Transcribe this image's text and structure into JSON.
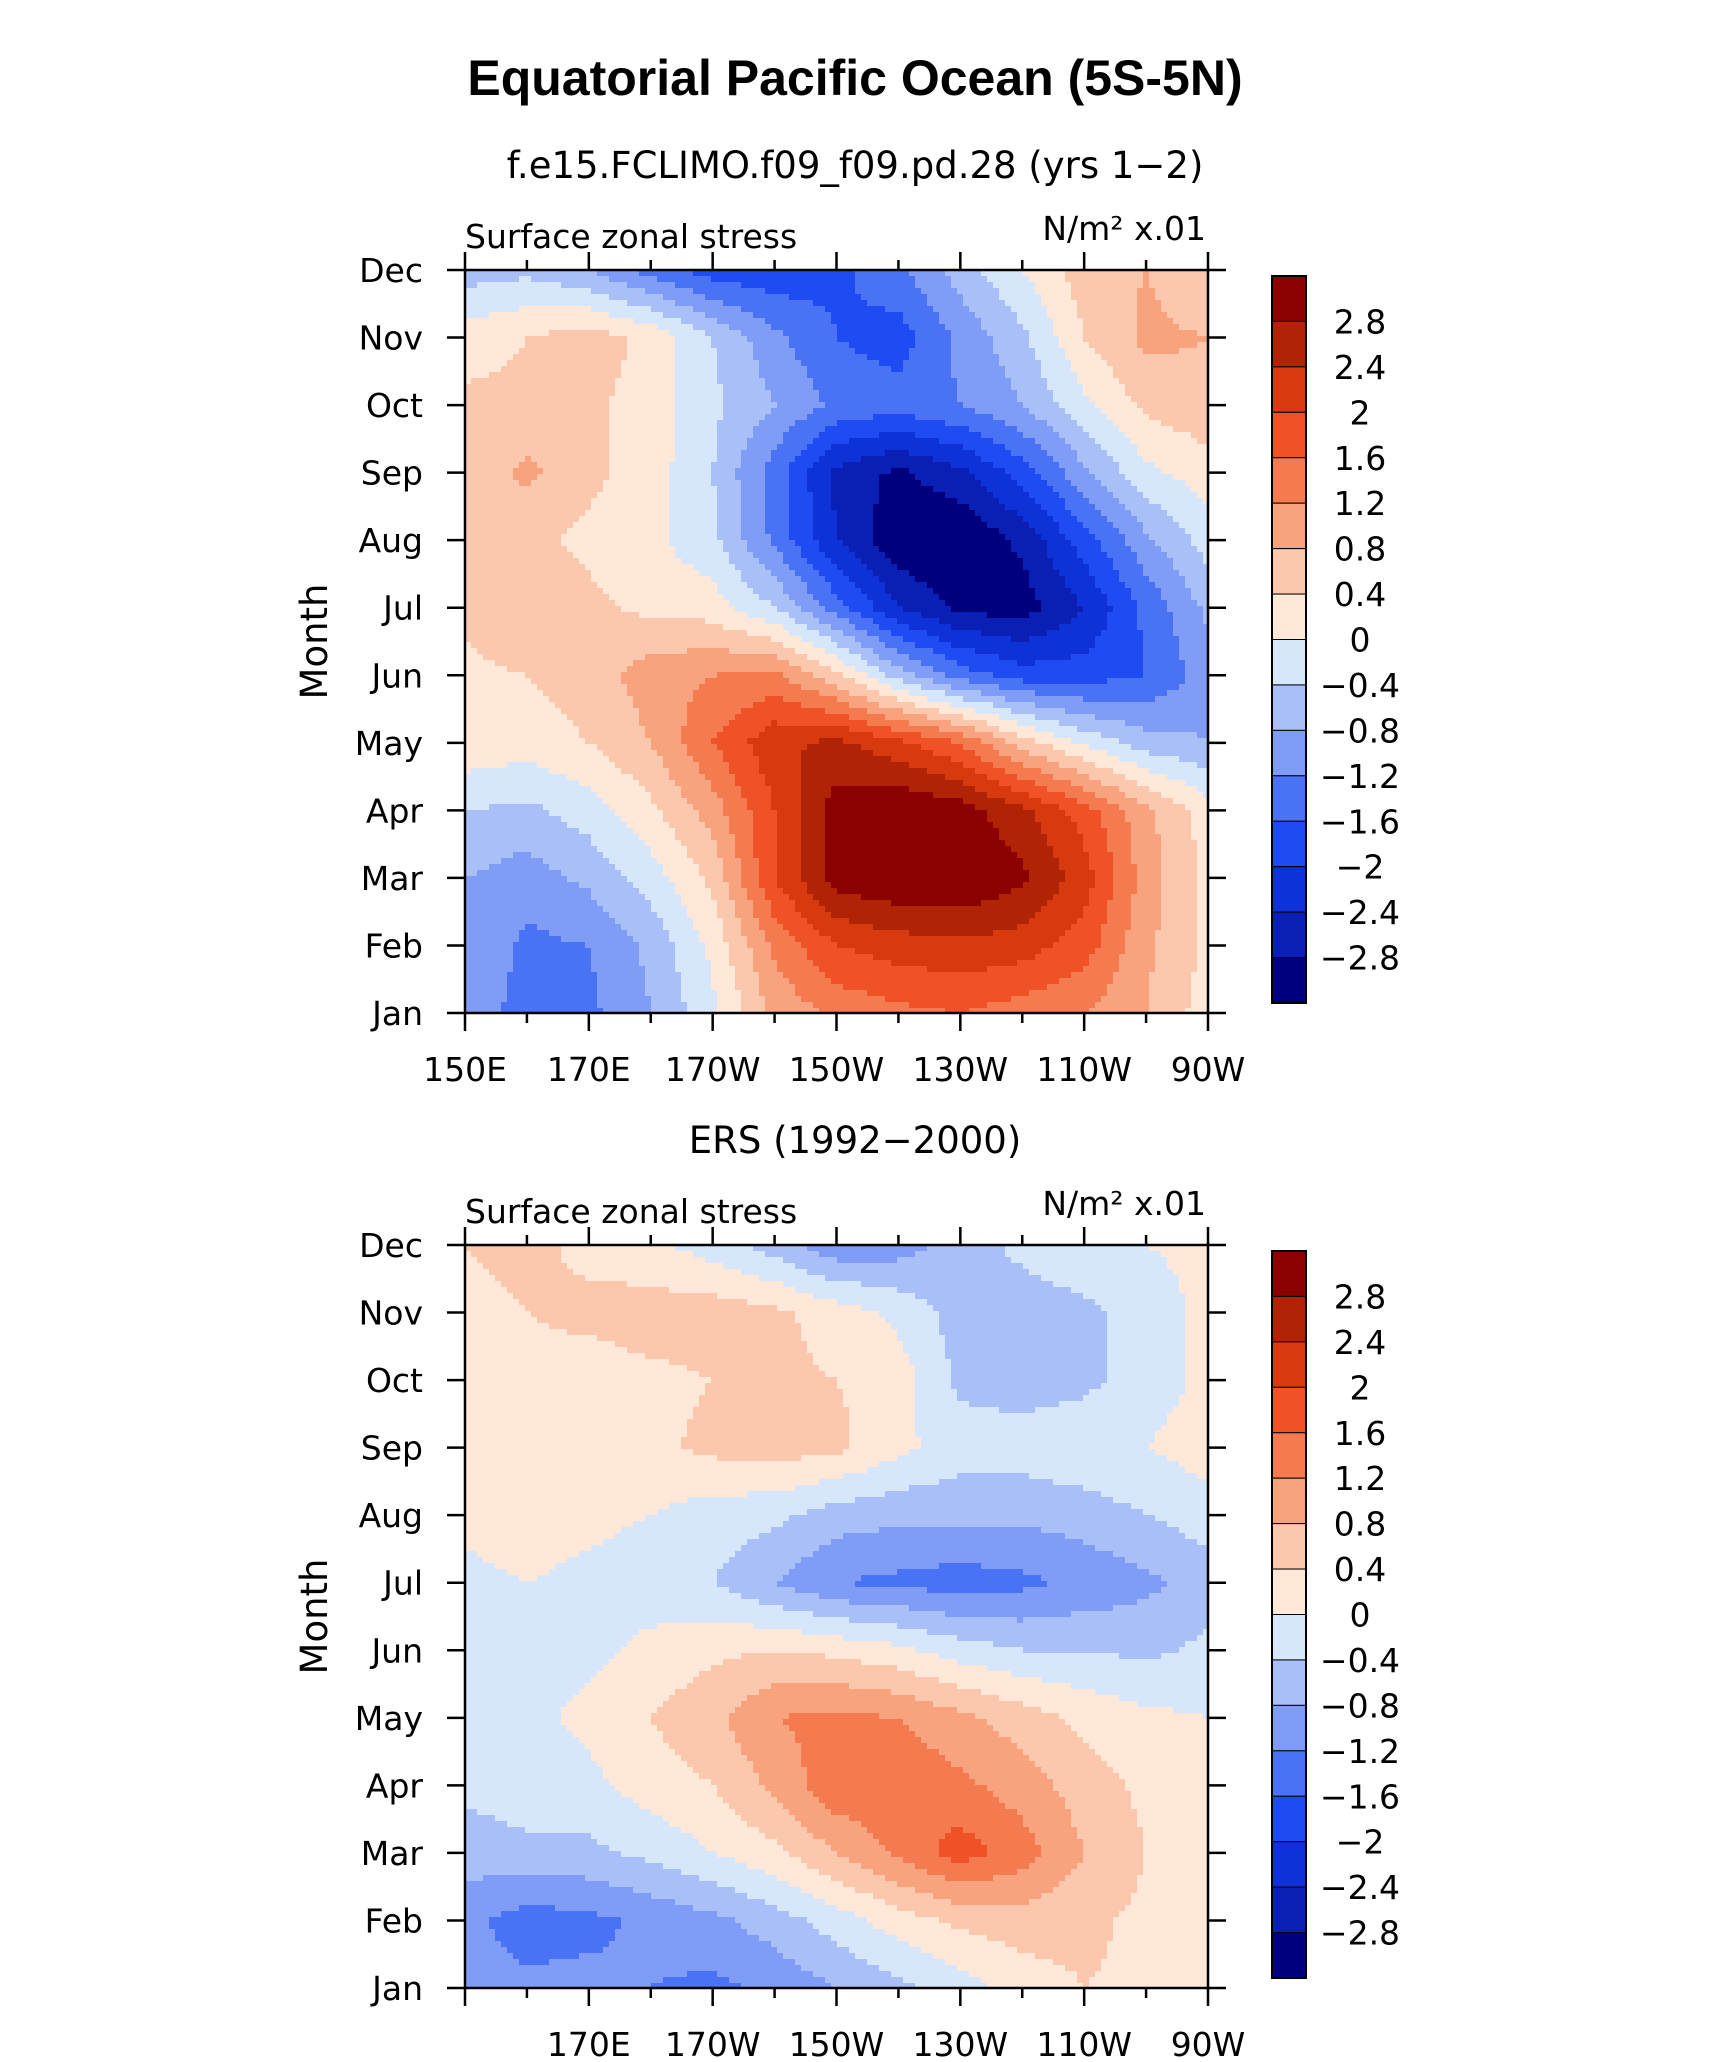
{
  "figure": {
    "title": "Equatorial Pacific Ocean (5S-5N)"
  },
  "colorbar": {
    "levels": [
      -2.8,
      -2.4,
      -2,
      -1.6,
      -1.2,
      -0.8,
      -0.4,
      0,
      0.4,
      0.8,
      1.2,
      1.6,
      2,
      2.4,
      2.8
    ],
    "labels": [
      "2.8",
      "2.4",
      "2",
      "1.6",
      "1.2",
      "0.8",
      "0.4",
      "0",
      "−0.4",
      "−0.8",
      "−1.2",
      "−1.6",
      "−2",
      "−2.4",
      "−2.8"
    ],
    "colors": [
      "#00007f",
      "#0a1fb4",
      "#0f32d8",
      "#1f4cf2",
      "#4a72f4",
      "#7f9cf6",
      "#a9bff8",
      "#d6e6fb",
      "#ffe8d8",
      "#fbc7ad",
      "#f8a27e",
      "#f47a50",
      "#ef5226",
      "#d83a0f",
      "#b02405",
      "#8b0000"
    ]
  },
  "chart_data": [
    {
      "type": "heatmap",
      "subtitle": "f.e15.FCLIMO.f09_f09.pd.28 (yrs 1−2)",
      "left_label": "Surface zonal stress",
      "units_label": "N/m² x.01",
      "ylabel": "Month",
      "x_tick_labels": [
        "150E",
        "170E",
        "170W",
        "150W",
        "130W",
        "110W",
        "90W"
      ],
      "x_ticks": [
        150,
        170,
        190,
        210,
        230,
        250,
        270
      ],
      "xlim": [
        150,
        270
      ],
      "y_tick_labels": [
        "Jan",
        "Feb",
        "Mar",
        "Apr",
        "May",
        "Jun",
        "Jul",
        "Aug",
        "Sep",
        "Oct",
        "Nov",
        "Dec"
      ],
      "ylim": [
        1,
        12
      ],
      "x": [
        150,
        160,
        170,
        180,
        190,
        200,
        210,
        220,
        230,
        240,
        250,
        260,
        270
      ],
      "values": [
        [
          -0.9,
          -1.4,
          -1.3,
          -0.8,
          -0.1,
          0.9,
          1.3,
          1.5,
          1.6,
          1.4,
          1.2,
          0.8,
          0.2
        ],
        [
          -0.8,
          -1.3,
          -1.2,
          -0.7,
          0.1,
          1.3,
          2.0,
          2.2,
          2.3,
          2.2,
          1.8,
          0.9,
          0.3
        ],
        [
          -0.8,
          -1.0,
          -0.7,
          -0.2,
          0.5,
          2.0,
          3.0,
          3.2,
          3.2,
          2.9,
          2.2,
          1.0,
          0.3
        ],
        [
          -0.4,
          -0.5,
          -0.2,
          0.3,
          1.0,
          2.0,
          3.0,
          3.2,
          3.0,
          2.5,
          1.8,
          0.9,
          0.2
        ],
        [
          0.3,
          0.2,
          0.4,
          0.8,
          1.6,
          2.3,
          2.5,
          2.1,
          1.6,
          0.6,
          -0.1,
          -0.6,
          -0.8
        ],
        [
          0.3,
          0.4,
          0.6,
          1.0,
          1.2,
          1.3,
          0.5,
          -0.6,
          -1.4,
          -1.8,
          -1.8,
          -1.6,
          -1.0
        ],
        [
          0.5,
          0.8,
          0.5,
          0.3,
          0.2,
          -0.4,
          -1.4,
          -2.4,
          -2.9,
          -3.0,
          -2.4,
          -1.5,
          -0.7
        ],
        [
          0.4,
          0.5,
          0.3,
          0.1,
          -0.3,
          -1.3,
          -2.4,
          -3.1,
          -3.2,
          -2.7,
          -1.8,
          -0.9,
          -0.2
        ],
        [
          0.5,
          0.9,
          0.5,
          0.2,
          -0.4,
          -1.4,
          -2.5,
          -2.9,
          -2.5,
          -1.8,
          -0.9,
          -0.1,
          0.2
        ],
        [
          0.5,
          0.5,
          0.5,
          0.2,
          -0.3,
          -0.8,
          -1.3,
          -1.4,
          -1.2,
          -0.8,
          -0.1,
          0.5,
          0.7
        ],
        [
          0.2,
          0.4,
          0.6,
          0.3,
          -0.4,
          -1.1,
          -1.6,
          -1.8,
          -1.1,
          -0.5,
          0.4,
          0.9,
          0.8
        ],
        [
          -0.6,
          -0.5,
          -0.8,
          -1.4,
          -1.8,
          -1.9,
          -1.7,
          -1.3,
          -0.6,
          0.0,
          0.6,
          0.8,
          0.4
        ]
      ]
    },
    {
      "type": "heatmap",
      "subtitle": "ERS (1992−2000)",
      "left_label": "Surface zonal stress",
      "units_label": "N/m² x.01",
      "ylabel": "Month",
      "x_tick_labels": [
        "170E",
        "170W",
        "150W",
        "130W",
        "110W",
        "90W"
      ],
      "x_ticks": [
        170,
        190,
        210,
        230,
        250,
        270
      ],
      "xlim": [
        150,
        270
      ],
      "y_tick_labels": [
        "Jan",
        "Feb",
        "Mar",
        "Apr",
        "May",
        "Jun",
        "Jul",
        "Aug",
        "Sep",
        "Oct",
        "Nov",
        "Dec"
      ],
      "ylim": [
        1,
        12
      ],
      "x": [
        150,
        160,
        170,
        180,
        190,
        200,
        210,
        220,
        230,
        240,
        250,
        260,
        270
      ],
      "values": [
        [
          -1.0,
          -1.1,
          -1.1,
          -1.2,
          -1.3,
          -1.1,
          -0.8,
          -0.5,
          -0.2,
          0.2,
          0.4,
          0.3,
          0.2
        ],
        [
          -1.1,
          -1.4,
          -1.3,
          -1.1,
          -0.9,
          -0.6,
          -0.2,
          0.2,
          0.5,
          0.6,
          0.5,
          0.3,
          0.1
        ],
        [
          -0.6,
          -0.5,
          -0.5,
          -0.3,
          0.0,
          0.3,
          0.8,
          1.3,
          1.8,
          1.4,
          0.8,
          0.4,
          0.1
        ],
        [
          -0.3,
          -0.2,
          -0.1,
          0.2,
          0.4,
          0.9,
          1.5,
          1.5,
          1.3,
          1.0,
          0.6,
          0.3,
          0.1
        ],
        [
          -0.2,
          -0.1,
          0.1,
          0.4,
          0.7,
          1.2,
          1.3,
          1.2,
          0.9,
          0.6,
          0.3,
          0.1,
          0.0
        ],
        [
          -0.3,
          -0.2,
          -0.1,
          0.1,
          0.3,
          0.4,
          0.3,
          0.1,
          -0.2,
          -0.4,
          -0.4,
          -0.5,
          -0.3
        ],
        [
          -0.1,
          0.0,
          -0.1,
          -0.2,
          -0.4,
          -0.8,
          -1.2,
          -1.3,
          -1.4,
          -1.3,
          -1.1,
          -0.9,
          -0.6
        ],
        [
          0.1,
          0.2,
          0.1,
          0.0,
          -0.2,
          -0.3,
          -0.6,
          -0.7,
          -0.7,
          -0.7,
          -0.6,
          -0.4,
          -0.2
        ],
        [
          0.2,
          0.3,
          0.2,
          0.3,
          0.5,
          0.6,
          0.5,
          0.1,
          -0.2,
          -0.2,
          -0.1,
          0.0,
          0.2
        ],
        [
          0.2,
          0.3,
          0.2,
          0.3,
          0.4,
          0.5,
          0.4,
          0.2,
          -0.5,
          -0.6,
          -0.5,
          -0.2,
          0.1
        ],
        [
          0.3,
          0.4,
          0.5,
          0.6,
          0.6,
          0.5,
          0.2,
          -0.1,
          -0.6,
          -0.6,
          -0.5,
          -0.2,
          0.1
        ],
        [
          0.4,
          0.5,
          0.3,
          0.1,
          -0.2,
          -0.6,
          -1.1,
          -1.0,
          -0.6,
          -0.3,
          -0.1,
          0.0,
          0.1
        ]
      ]
    }
  ]
}
